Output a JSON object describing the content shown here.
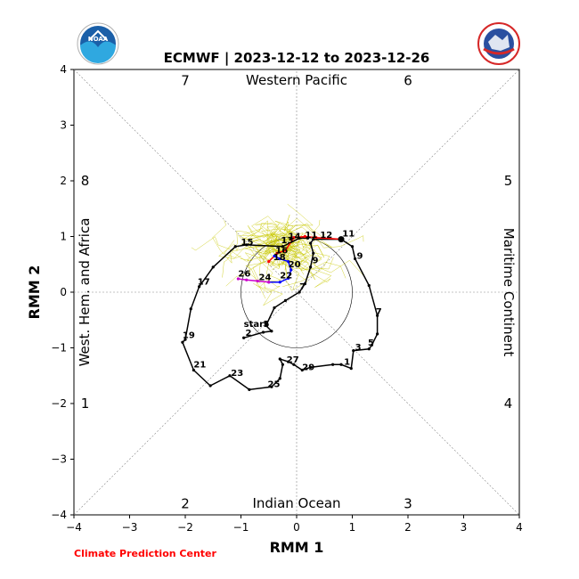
{
  "chart_data": {
    "type": "line",
    "title": "ECMWF | 2023-12-12 to 2023-12-26",
    "xlabel": "RMM 1",
    "ylabel": "RMM 2",
    "xlim": [
      -4,
      4
    ],
    "ylim": [
      -4,
      4
    ],
    "x_ticks": [
      "−4",
      "−3",
      "−2",
      "−1",
      "0",
      "1",
      "2",
      "3",
      "4"
    ],
    "y_ticks": [
      "−4",
      "−3",
      "−2",
      "−1",
      "0",
      "1",
      "2",
      "3",
      "4"
    ],
    "grid": "dashed center lines and diagonals",
    "unit_circle_radius": 1,
    "regions": {
      "top": "Western Pacific",
      "bottom": "Indian Ocean",
      "left": "West. Hem. and Africa",
      "right": "Maritime Continent"
    },
    "phases": [
      {
        "label": "1",
        "x": -3.8,
        "y": -2.0
      },
      {
        "label": "2",
        "x": -2.0,
        "y": -3.8
      },
      {
        "label": "3",
        "x": 2.0,
        "y": -3.8
      },
      {
        "label": "4",
        "x": 3.8,
        "y": -2.0
      },
      {
        "label": "5",
        "x": 3.8,
        "y": 2.0
      },
      {
        "label": "6",
        "x": 2.0,
        "y": 3.8
      },
      {
        "label": "7",
        "x": -2.0,
        "y": 3.8
      },
      {
        "label": "8",
        "x": -3.8,
        "y": 2.0
      }
    ],
    "series": [
      {
        "color": "#000000",
        "points": [
          [
            -0.95,
            -0.82
          ],
          [
            -0.6,
            -0.72
          ],
          [
            -0.45,
            -0.7
          ],
          [
            -0.55,
            -0.6
          ],
          [
            -0.4,
            -0.28
          ],
          [
            -0.2,
            -0.15
          ],
          [
            0.05,
            0.0
          ],
          [
            0.15,
            0.15
          ],
          [
            0.25,
            0.45
          ],
          [
            0.3,
            0.7
          ],
          [
            0.25,
            0.88
          ],
          [
            0.3,
            0.95
          ],
          [
            0.8,
            0.95
          ],
          [
            1.0,
            0.82
          ],
          [
            1.05,
            0.6
          ],
          [
            1.3,
            0.12
          ],
          [
            1.45,
            -0.42
          ],
          [
            1.45,
            -0.75
          ],
          [
            1.35,
            -0.95
          ],
          [
            1.3,
            -1.02
          ],
          [
            1.02,
            -1.05
          ],
          [
            0.98,
            -1.37
          ],
          [
            0.8,
            -1.3
          ],
          [
            0.65,
            -1.3
          ],
          [
            0.25,
            -1.35
          ],
          [
            0.1,
            -1.4
          ],
          [
            -0.05,
            -1.3
          ],
          [
            -0.15,
            -1.25
          ],
          [
            -0.3,
            -1.2
          ],
          [
            -0.25,
            -1.3
          ],
          [
            -0.3,
            -1.55
          ],
          [
            -0.45,
            -1.7
          ],
          [
            -0.85,
            -1.75
          ],
          [
            -1.2,
            -1.5
          ],
          [
            -1.55,
            -1.68
          ],
          [
            -1.85,
            -1.4
          ],
          [
            -2.05,
            -0.9
          ],
          [
            -2.0,
            -0.85
          ],
          [
            -1.9,
            -0.3
          ],
          [
            -1.75,
            0.1
          ],
          [
            -1.5,
            0.45
          ],
          [
            -1.1,
            0.82
          ],
          [
            -0.9,
            0.85
          ],
          [
            -0.25,
            0.82
          ],
          [
            0.05,
            0.97
          ],
          [
            0.2,
            0.97
          ]
        ]
      },
      {
        "color": "#ff0000",
        "points": [
          [
            0.8,
            0.95
          ],
          [
            0.35,
            0.98
          ],
          [
            0.15,
            1.0
          ],
          [
            -0.05,
            0.98
          ],
          [
            -0.2,
            0.75
          ],
          [
            -0.35,
            0.7
          ],
          [
            -0.5,
            0.55
          ]
        ]
      },
      {
        "color": "#0000ff",
        "points": [
          [
            -0.4,
            0.65
          ],
          [
            -0.3,
            0.6
          ],
          [
            -0.15,
            0.55
          ],
          [
            -0.1,
            0.4
          ],
          [
            -0.15,
            0.25
          ],
          [
            -0.3,
            0.18
          ],
          [
            -0.5,
            0.18
          ]
        ]
      },
      {
        "color": "#cc00cc",
        "points": [
          [
            -0.5,
            0.18
          ],
          [
            -0.7,
            0.2
          ],
          [
            -0.9,
            0.22
          ],
          [
            -1.05,
            0.24
          ]
        ]
      }
    ],
    "day_labels": [
      {
        "text": "start",
        "x": -0.95,
        "y": -0.62
      },
      {
        "text": "5",
        "x": -0.6,
        "y": -0.62
      },
      {
        "text": "2",
        "x": -0.92,
        "y": -0.78
      },
      {
        "text": "7",
        "x": 0.05,
        "y": 0.05
      },
      {
        "text": "9",
        "x": 0.28,
        "y": 0.52
      },
      {
        "text": "11",
        "x": 0.15,
        "y": 0.98
      },
      {
        "text": "12",
        "x": 0.42,
        "y": 0.98
      },
      {
        "text": "14",
        "x": -0.15,
        "y": 0.95
      },
      {
        "text": "13",
        "x": -0.28,
        "y": 0.88
      },
      {
        "text": "11",
        "x": 0.82,
        "y": 1.0
      },
      {
        "text": "9",
        "x": 1.08,
        "y": 0.6
      },
      {
        "text": "7",
        "x": 1.42,
        "y": -0.4
      },
      {
        "text": "5",
        "x": 1.28,
        "y": -0.96
      },
      {
        "text": "3",
        "x": 1.05,
        "y": -1.04
      },
      {
        "text": "1",
        "x": 0.85,
        "y": -1.3
      },
      {
        "text": "29",
        "x": 0.1,
        "y": -1.4
      },
      {
        "text": "27",
        "x": -0.18,
        "y": -1.26
      },
      {
        "text": "25",
        "x": -0.52,
        "y": -1.7
      },
      {
        "text": "23",
        "x": -1.18,
        "y": -1.5
      },
      {
        "text": "21",
        "x": -1.85,
        "y": -1.35
      },
      {
        "text": "19",
        "x": -2.05,
        "y": -0.82
      },
      {
        "text": "17",
        "x": -1.78,
        "y": 0.14
      },
      {
        "text": "15",
        "x": -1.0,
        "y": 0.85
      },
      {
        "text": "16",
        "x": -0.38,
        "y": 0.7
      },
      {
        "text": "18",
        "x": -0.42,
        "y": 0.58
      },
      {
        "text": "20",
        "x": -0.15,
        "y": 0.45
      },
      {
        "text": "22",
        "x": -0.3,
        "y": 0.25
      },
      {
        "text": "24",
        "x": -0.68,
        "y": 0.22
      },
      {
        "text": "26",
        "x": -1.05,
        "y": 0.28
      }
    ]
  },
  "credit": "Climate Prediction Center",
  "logos": {
    "left": {
      "name": "noaa-logo",
      "text": "NOAA",
      "color": "#1a5fa8"
    },
    "right": {
      "name": "nws-logo",
      "color": "#d62828"
    }
  }
}
